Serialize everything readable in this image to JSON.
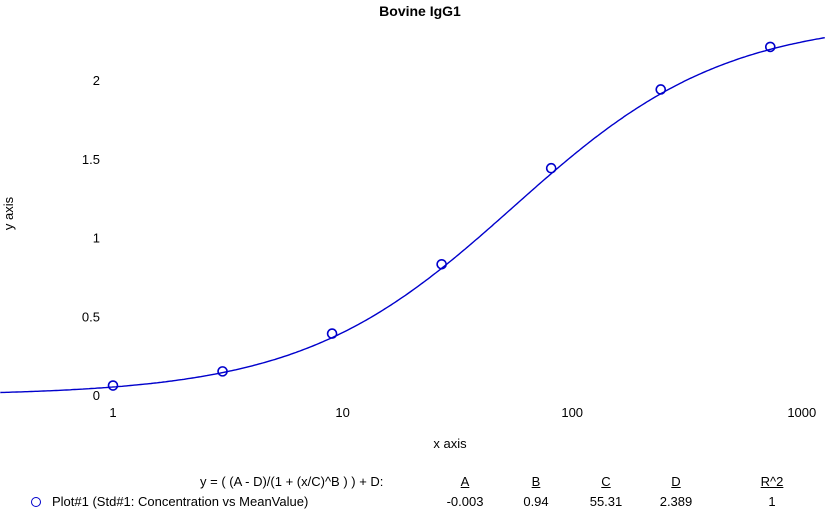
{
  "chart_data": {
    "type": "scatter",
    "title": "Bovine IgG1",
    "xlabel": "x axis",
    "ylabel": "y axis",
    "xscale": "log",
    "xlim": [
      0.1,
      1000
    ],
    "ylim": [
      -0.1,
      2.3
    ],
    "x_ticks": [
      "1",
      "10",
      "100",
      "1000"
    ],
    "y_ticks": [
      "0",
      "0.5",
      "1",
      "1.5",
      "2"
    ],
    "series": [
      {
        "name": "Plot#1 (Std#1: Concentration vs MeanValue)",
        "marker": "open-circle",
        "color": "#0000cc",
        "x": [
          1,
          3,
          9,
          27,
          81,
          243,
          729
        ],
        "y": [
          0.06,
          0.15,
          0.39,
          0.83,
          1.44,
          1.94,
          2.21
        ]
      }
    ],
    "fit": {
      "equation": "y = ( (A - D)/(1 + (x/C)^B ) ) + D:",
      "params": {
        "A": -0.003,
        "B": 0.94,
        "C": 55.31,
        "D": 2.389
      }
    }
  },
  "legend": {
    "formula": "y = ( (A - D)/(1 + (x/C)^B ) ) + D:",
    "headers": [
      "A",
      "B",
      "C",
      "D",
      "R^2"
    ],
    "values": [
      "-0.003",
      "0.94",
      "55.31",
      "2.389",
      "1"
    ],
    "plot_label": "Plot#1 (Std#1: Concentration vs MeanValue)"
  }
}
